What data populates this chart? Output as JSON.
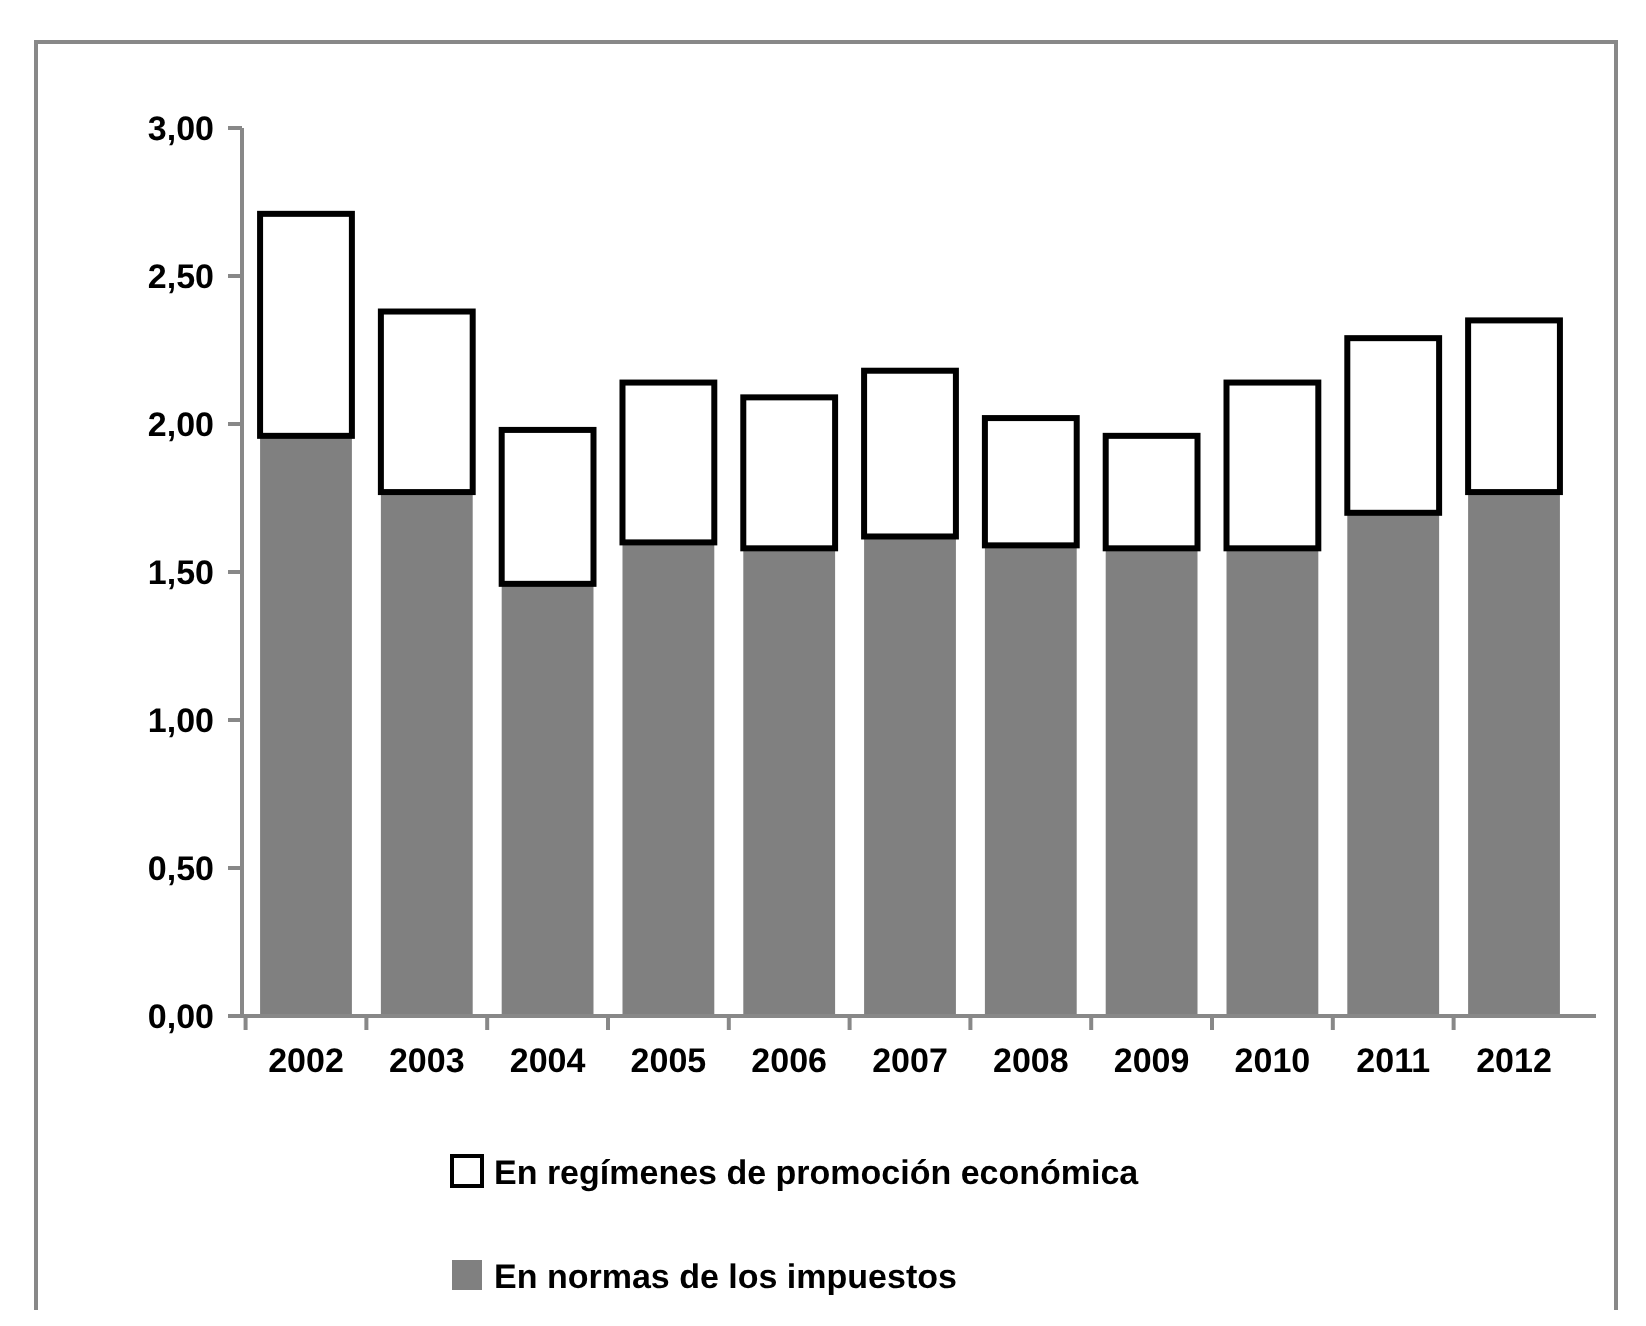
{
  "chart_data": {
    "type": "bar",
    "stacked": true,
    "categories": [
      "2002",
      "2003",
      "2004",
      "2005",
      "2006",
      "2007",
      "2008",
      "2009",
      "2010",
      "2011",
      "2012"
    ],
    "series": [
      {
        "name": "En normas de los impuestos",
        "color": "#808080",
        "values": [
          1.96,
          1.77,
          1.46,
          1.6,
          1.58,
          1.62,
          1.59,
          1.58,
          1.58,
          1.7,
          1.77
        ]
      },
      {
        "name": "En regímenes de promoción económica",
        "color": "#ffffff",
        "values": [
          0.75,
          0.61,
          0.52,
          0.54,
          0.51,
          0.56,
          0.43,
          0.38,
          0.56,
          0.59,
          0.58
        ]
      }
    ],
    "ylim": [
      0,
      3
    ],
    "yticks": [
      {
        "value": 0,
        "label": "0,00"
      },
      {
        "value": 0.5,
        "label": "0,50"
      },
      {
        "value": 1,
        "label": "1,00"
      },
      {
        "value": 1.5,
        "label": "1,50"
      },
      {
        "value": 2,
        "label": "2,00"
      },
      {
        "value": 2.5,
        "label": "2,50"
      },
      {
        "value": 3,
        "label": "3,00"
      }
    ],
    "grid": false,
    "legend": "bottom"
  }
}
